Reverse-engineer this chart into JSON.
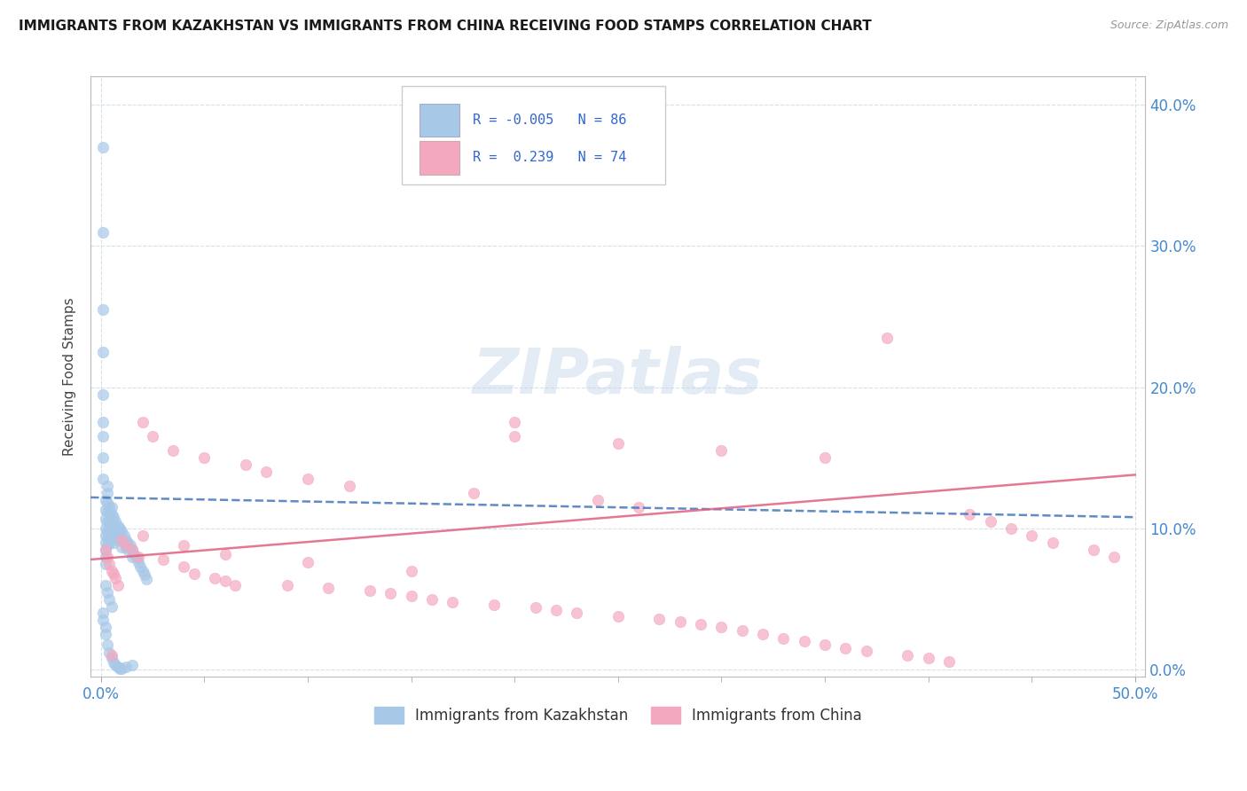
{
  "title": "IMMIGRANTS FROM KAZAKHSTAN VS IMMIGRANTS FROM CHINA RECEIVING FOOD STAMPS CORRELATION CHART",
  "source": "Source: ZipAtlas.com",
  "ylabel": "Receiving Food Stamps",
  "yticks": [
    "0.0%",
    "10.0%",
    "20.0%",
    "30.0%",
    "40.0%"
  ],
  "ytick_vals": [
    0.0,
    0.1,
    0.2,
    0.3,
    0.4
  ],
  "xlim": [
    -0.005,
    0.505
  ],
  "ylim": [
    -0.005,
    0.42
  ],
  "r_kazakhstan": -0.005,
  "n_kazakhstan": 86,
  "r_china": 0.239,
  "n_china": 74,
  "legend_label_1": "Immigrants from Kazakhstan",
  "legend_label_2": "Immigrants from China",
  "kazakhstan_color": "#a8c8e8",
  "china_color": "#f4a8c0",
  "kazakhstan_line_color": "#4477bb",
  "china_line_color": "#e06080",
  "watermark_color": "#c8d8ec",
  "kaz_trend_start_y": 0.122,
  "kaz_trend_end_y": 0.108,
  "china_trend_start_y": 0.078,
  "china_trend_end_y": 0.138
}
